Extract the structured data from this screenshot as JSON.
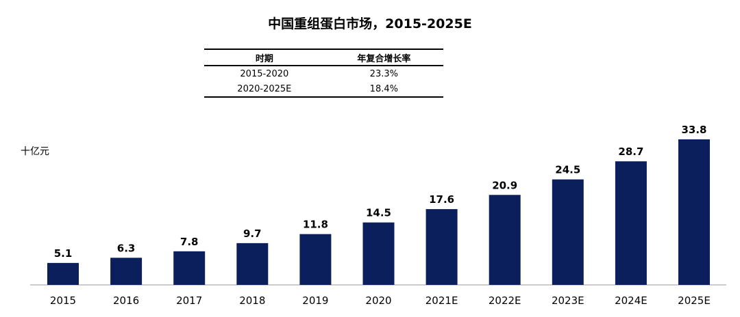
{
  "chart_data": {
    "type": "bar",
    "title": "中国重组蛋白市场，2015-2025E",
    "ylabel": "十亿元",
    "xlabel": "",
    "categories": [
      "2015",
      "2016",
      "2017",
      "2018",
      "2019",
      "2020",
      "2021E",
      "2022E",
      "2023E",
      "2024E",
      "2025E"
    ],
    "values": [
      5.1,
      6.3,
      7.8,
      9.7,
      11.8,
      14.5,
      17.6,
      20.9,
      24.5,
      28.7,
      33.8
    ],
    "value_labels": [
      "5.1",
      "6.3",
      "7.8",
      "9.7",
      "11.8",
      "14.5",
      "17.6",
      "20.9",
      "24.5",
      "28.7",
      "33.8"
    ],
    "ylim": [
      0,
      33.8
    ],
    "grid": false,
    "bar_color": "#0a1f5c",
    "cagr_table": {
      "headers": [
        "时期",
        "年复合增长率"
      ],
      "rows": [
        [
          "2015-2020",
          "23.3%"
        ],
        [
          "2020-2025E",
          "18.4%"
        ]
      ]
    }
  }
}
